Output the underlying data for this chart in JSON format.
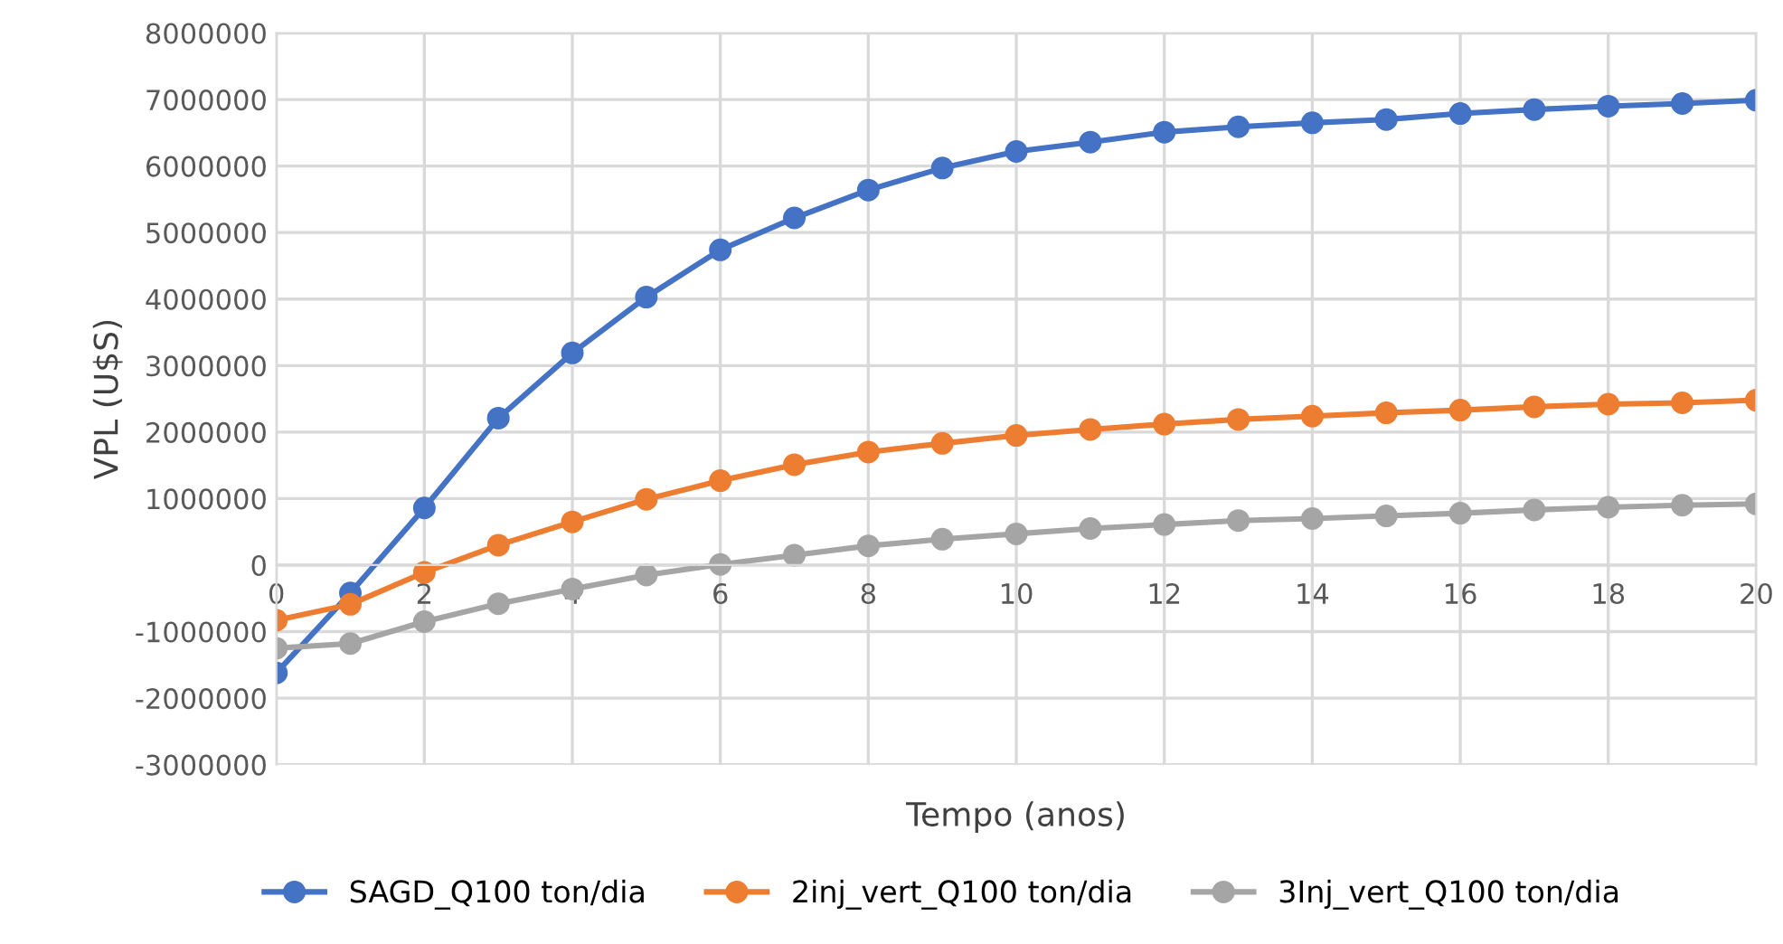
{
  "chart_data": {
    "type": "line",
    "xlabel": "Tempo (anos)",
    "ylabel": "VPL (U$S)",
    "x": [
      0,
      1,
      2,
      3,
      4,
      5,
      6,
      7,
      8,
      9,
      10,
      11,
      12,
      13,
      14,
      15,
      16,
      17,
      18,
      19,
      20
    ],
    "series": [
      {
        "name": "SAGD_Q100 ton/dia",
        "color": "#4472c4",
        "values": [
          -1620000,
          -420000,
          860000,
          2210000,
          3190000,
          4030000,
          4740000,
          5220000,
          5640000,
          5970000,
          6220000,
          6360000,
          6510000,
          6590000,
          6650000,
          6700000,
          6790000,
          6850000,
          6900000,
          6940000,
          6990000
        ]
      },
      {
        "name": "2inj_vert_Q100 ton/dia",
        "color": "#ed7d31",
        "values": [
          -830000,
          -590000,
          -110000,
          300000,
          650000,
          990000,
          1270000,
          1510000,
          1700000,
          1830000,
          1950000,
          2040000,
          2120000,
          2190000,
          2240000,
          2290000,
          2330000,
          2380000,
          2420000,
          2440000,
          2480000
        ]
      },
      {
        "name": "3Inj_vert_Q100 ton/dia",
        "color": "#a5a5a5",
        "values": [
          -1250000,
          -1180000,
          -850000,
          -580000,
          -360000,
          -150000,
          10000,
          150000,
          290000,
          390000,
          470000,
          550000,
          610000,
          670000,
          700000,
          740000,
          780000,
          830000,
          870000,
          900000,
          920000
        ]
      }
    ],
    "xlim": [
      0,
      20
    ],
    "xticks": [
      0,
      2,
      4,
      6,
      8,
      10,
      12,
      14,
      16,
      18,
      20
    ],
    "ylim": [
      -3000000,
      8000000
    ],
    "yticks": [
      -3000000,
      -2000000,
      -1000000,
      0,
      1000000,
      2000000,
      3000000,
      4000000,
      5000000,
      6000000,
      7000000,
      8000000
    ],
    "grid": true,
    "legend": "bottom",
    "marker": "circle",
    "line_style": "solid"
  }
}
